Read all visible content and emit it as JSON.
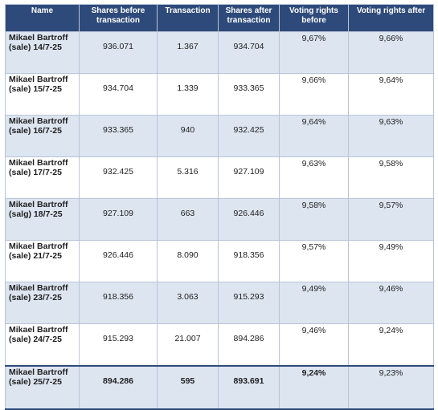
{
  "table": {
    "headers": {
      "name": "Name",
      "shares_before": "Shares before transaction",
      "transaction": "Transaction",
      "shares_after": "Shares after transaction",
      "voting_before": "Voting rights before",
      "voting_after": "Voting rights after"
    },
    "rows": [
      {
        "name": "Mikael Bartroff (sale) 14/7-25",
        "shares_before": "936.071",
        "transaction": "1.367",
        "shares_after": "934.704",
        "voting_before": "9,67%",
        "voting_after": "9,66%"
      },
      {
        "name": "Mikael Bartroff (sale) 15/7-25",
        "shares_before": "934.704",
        "transaction": "1.339",
        "shares_after": "933.365",
        "voting_before": "9,66%",
        "voting_after": "9,64%"
      },
      {
        "name": "Mikael Bartroff (sale) 16/7-25",
        "shares_before": "933.365",
        "transaction": "940",
        "shares_after": "932.425",
        "voting_before": "9,64%",
        "voting_after": "9,63%"
      },
      {
        "name": "Mikael Bartroff (sale) 17/7-25",
        "shares_before": "932.425",
        "transaction": "5.316",
        "shares_after": "927.109",
        "voting_before": "9,63%",
        "voting_after": "9,58%"
      },
      {
        "name": "Mikael Bartroff (salg) 18/7-25",
        "shares_before": "927.109",
        "transaction": "663",
        "shares_after": "926.446",
        "voting_before": "9,58%",
        "voting_after": "9,57%"
      },
      {
        "name": "Mikael Bartroff (sale) 21/7-25",
        "shares_before": "926.446",
        "transaction": "8.090",
        "shares_after": "918.356",
        "voting_before": "9,57%",
        "voting_after": "9,49%"
      },
      {
        "name": "Mikael Bartroff (sale) 23/7-25",
        "shares_before": "918.356",
        "transaction": "3.063",
        "shares_after": "915.293",
        "voting_before": "9,49%",
        "voting_after": "9,46%"
      },
      {
        "name": "Mikael Bartroff (sale) 24/7-25",
        "shares_before": "915.293",
        "transaction": "21.007",
        "shares_after": "894.286",
        "voting_before": "9,46%",
        "voting_after": "9,24%"
      },
      {
        "name": "Mikael Bartroff (sale) 25/7-25",
        "shares_before": "894.286",
        "transaction": "595",
        "shares_after": "893.691",
        "voting_before": "9,24%",
        "voting_after": "9,23%"
      }
    ]
  },
  "colors": {
    "header_bg": "#2e4a7a",
    "shaded_row": "#dde5f0",
    "border": "#b8c4d6"
  }
}
